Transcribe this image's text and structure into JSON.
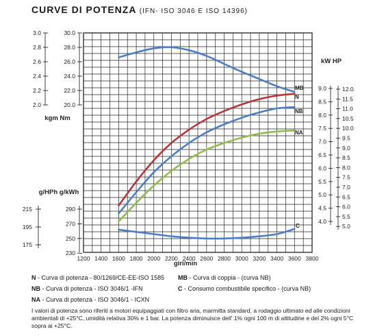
{
  "title": "CURVE DI POTENZA",
  "subtitle": "(IFN- ISO 3046 E ISO 14396)",
  "chart_data": {
    "type": "line",
    "x_axis": {
      "label": "giri/min",
      "ticks": [
        1200,
        1400,
        1600,
        1800,
        2000,
        2200,
        2400,
        2600,
        2800,
        3000,
        3200,
        3400,
        3600,
        3800
      ],
      "range": [
        1200,
        3800
      ]
    },
    "axis_labels": {
      "torque": "kgm Nm",
      "power": "kW HP",
      "consumption": "g/HPh g/kWh"
    },
    "axes": {
      "torque_kgm": [
        "3.0",
        "2.8",
        "2.6",
        "2.4",
        "2.2",
        "2.0"
      ],
      "torque_nm": [
        "30.0",
        "28.0",
        "26.0",
        "24.0",
        "22.0",
        "20.0"
      ],
      "power_kw": [
        "9.0",
        "8.5",
        "8.0",
        "7.5",
        "7.0",
        "6.5",
        "6.0",
        "5.5",
        "5.0",
        "4.5",
        "4.0"
      ],
      "power_hp": [
        "12.0",
        "11.5",
        "11.0",
        "10.5",
        "10.0",
        "9.5",
        "9.0",
        "8.5",
        "8.0",
        "7.5",
        "7.0",
        "6.5",
        "6.0",
        "5.5",
        "5.0"
      ],
      "cons_ghph": [
        "215",
        "195",
        "175"
      ],
      "cons_gkwh": [
        "290",
        "270",
        "250",
        "230"
      ]
    },
    "grid": true,
    "series": [
      {
        "name": "MB",
        "unit": "Nm",
        "color": "#4a7fc8",
        "x": [
          1600,
          1800,
          2000,
          2200,
          2400,
          2600,
          2800,
          3000,
          3200,
          3400,
          3600
        ],
        "y": [
          26.6,
          27.3,
          27.85,
          28.0,
          27.6,
          26.8,
          25.7,
          24.6,
          23.6,
          22.6,
          21.8
        ]
      },
      {
        "name": "N",
        "unit": "kW",
        "color": "#b8363a",
        "x": [
          1600,
          1800,
          2000,
          2200,
          2400,
          2600,
          2800,
          3000,
          3200,
          3400,
          3600
        ],
        "y": [
          4.6,
          5.5,
          6.3,
          6.95,
          7.45,
          7.85,
          8.15,
          8.4,
          8.6,
          8.73,
          8.8
        ]
      },
      {
        "name": "NB",
        "unit": "kW",
        "color": "#4a7fc8",
        "x": [
          1600,
          1800,
          2000,
          2200,
          2400,
          2600,
          2800,
          3000,
          3200,
          3400,
          3600
        ],
        "y": [
          4.3,
          5.1,
          5.85,
          6.45,
          6.95,
          7.35,
          7.65,
          7.9,
          8.1,
          8.25,
          8.3
        ]
      },
      {
        "name": "NA",
        "unit": "kW",
        "color": "#8fbe4a",
        "x": [
          1600,
          1800,
          2000,
          2200,
          2400,
          2600,
          2800,
          3000,
          3200,
          3400,
          3600
        ],
        "y": [
          4.0,
          4.7,
          5.35,
          5.9,
          6.35,
          6.7,
          6.95,
          7.15,
          7.3,
          7.38,
          7.42
        ]
      },
      {
        "name": "C",
        "unit": "g/kWh",
        "color": "#4a7fc8",
        "x": [
          1600,
          1800,
          2000,
          2200,
          2400,
          2600,
          2800,
          3000,
          3200,
          3400,
          3600
        ],
        "y": [
          262,
          259,
          256,
          253,
          251,
          250,
          250,
          251,
          253,
          256,
          263
        ]
      }
    ]
  },
  "legend": [
    {
      "key": "N",
      "text": "- Curva di potenza - 80/1269/CE-EE-ISO 1585"
    },
    {
      "key": "MB",
      "text": "- Curva di coppia - (curva NB)"
    },
    {
      "key": "NB",
      "text": "- Curva di potenza - ISO 3046/1 -IFN"
    },
    {
      "key": "C",
      "text": "- Consumo combustibile specifico - (curva NB)"
    },
    {
      "key": "NA",
      "text": "- Curva di potenza - ISO 3046/1 - ICXN"
    }
  ],
  "note": "I valori di potenza sono riferiti a motori equipaggiati con filtro aria, marmitta standard, a rodaggio ultimato ed alle condizioni ambientali di +25°C, umidità relativa 30% e 1 bar. La potenza diminuisce dell' 1% ogni 100 m di altitudine e del 2% ogni 5°C sopra ai +25°C."
}
